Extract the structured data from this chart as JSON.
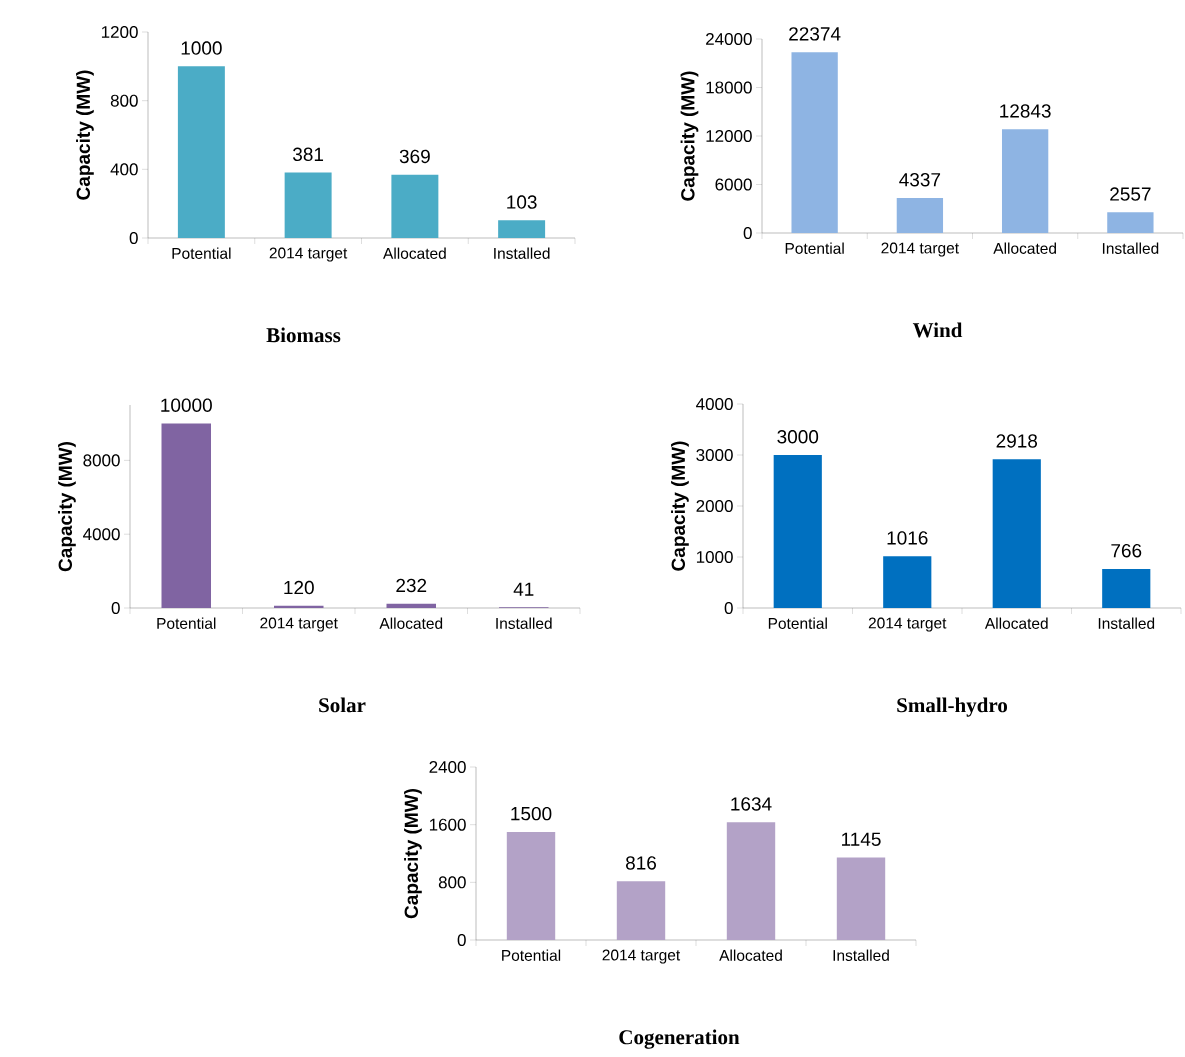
{
  "chart_data": [
    {
      "type": "bar",
      "title": "Biomass",
      "ylabel": "Capacity (MW)",
      "categories": [
        "Potential",
        "2014 target",
        "Allocated",
        "Installed"
      ],
      "values": [
        1000,
        381,
        369,
        103
      ],
      "color": "#4bacc6",
      "ylim": [
        0,
        1200
      ],
      "yticks": [
        0,
        400,
        800,
        1200
      ],
      "data_labels": true
    },
    {
      "type": "bar",
      "title": "Wind",
      "ylabel": "Capacity (MW)",
      "categories": [
        "Potential",
        "2014 target",
        "Allocated",
        "Installed"
      ],
      "values": [
        22374,
        4337,
        12843,
        2557
      ],
      "color": "#8eb4e3",
      "ylim": [
        0,
        24000
      ],
      "yticks": [
        0,
        6000,
        12000,
        18000,
        24000
      ],
      "data_labels": true
    },
    {
      "type": "bar",
      "title": "Solar",
      "ylabel": "Capacity (MW)",
      "categories": [
        "Potential",
        "2014 target",
        "Allocated",
        "Installed"
      ],
      "values": [
        10000,
        120,
        232,
        41
      ],
      "color": "#8064a2",
      "ylim": [
        0,
        11000
      ],
      "yticks": [
        0,
        4000,
        8000
      ],
      "data_labels": true
    },
    {
      "type": "bar",
      "title": "Small-hydro",
      "ylabel": "Capacity (MW)",
      "categories": [
        "Potential",
        "2014 target",
        "Allocated",
        "Installed"
      ],
      "values": [
        3000,
        1016,
        2918,
        766
      ],
      "color": "#0070c0",
      "ylim": [
        0,
        4000
      ],
      "yticks": [
        0,
        1000,
        2000,
        3000,
        4000
      ],
      "data_labels": true
    },
    {
      "type": "bar",
      "title": "Cogeneration",
      "ylabel": "Capacity (MW)",
      "categories": [
        "Potential",
        "2014 target",
        "Allocated",
        "Installed"
      ],
      "values": [
        1500,
        816,
        1634,
        1145
      ],
      "color": "#b3a2c7",
      "ylim": [
        0,
        2400
      ],
      "yticks": [
        0,
        800,
        1600,
        2400
      ],
      "data_labels": true
    }
  ]
}
